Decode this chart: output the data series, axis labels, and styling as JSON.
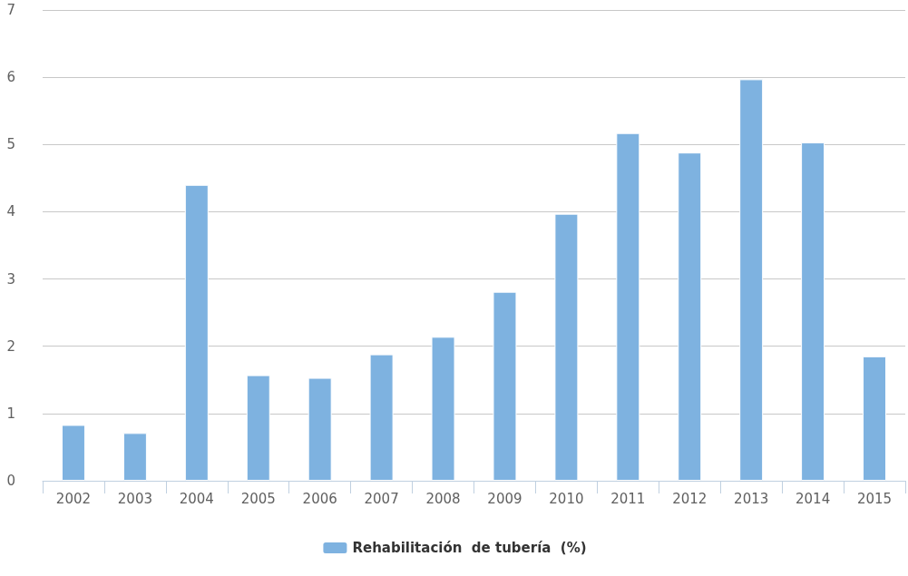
{
  "chart_data": {
    "type": "bar",
    "categories": [
      "2002",
      "2003",
      "2004",
      "2005",
      "2006",
      "2007",
      "2008",
      "2009",
      "2010",
      "2011",
      "2012",
      "2013",
      "2014",
      "2015"
    ],
    "series": [
      {
        "name": "Rehabilitación  de tubería  (%)",
        "color": "#7eb2e0",
        "values": [
          0.83,
          0.71,
          4.4,
          1.57,
          1.53,
          1.88,
          2.14,
          2.81,
          3.97,
          5.17,
          4.88,
          5.97,
          5.03,
          1.85
        ]
      }
    ],
    "ylim": [
      0,
      7
    ],
    "yticks": [
      0,
      1,
      2,
      3,
      4,
      5,
      6,
      7
    ],
    "grid": "y",
    "legend": "bottom"
  }
}
